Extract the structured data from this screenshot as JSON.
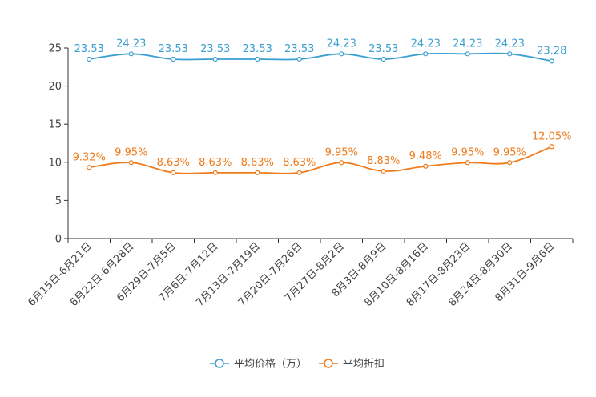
{
  "chart_data": {
    "type": "line",
    "categories": [
      "6月15日-6月21日",
      "6月22日-6月28日",
      "6月29日-7月5日",
      "7月6日-7月12日",
      "7月13日-7月19日",
      "7月20日-7月26日",
      "7月27日-8月2日",
      "8月3日-8月9日",
      "8月10日-8月16日",
      "8月17日-8月23日",
      "8月24日-8月30日",
      "8月31日-9月6日"
    ],
    "ylim": [
      0,
      25
    ],
    "yticks": [
      0,
      5,
      10,
      15,
      20,
      25
    ],
    "series": [
      {
        "name": "平均价格（万）",
        "color": "#3a9fd0",
        "values": [
          23.53,
          24.23,
          23.53,
          23.53,
          23.53,
          23.53,
          24.23,
          23.53,
          24.23,
          24.23,
          24.23,
          23.28
        ],
        "labels": [
          "23.53",
          "24.23",
          "23.53",
          "23.53",
          "23.53",
          "23.53",
          "24.23",
          "23.53",
          "24.23",
          "24.23",
          "24.23",
          "23.28"
        ]
      },
      {
        "name": "平均折扣",
        "color": "#f07a1a",
        "values": [
          9.32,
          9.95,
          8.63,
          8.63,
          8.63,
          8.63,
          9.95,
          8.83,
          9.48,
          9.95,
          9.95,
          12.05
        ],
        "labels": [
          "9.32%",
          "9.95%",
          "8.63%",
          "8.63%",
          "8.63%",
          "8.63%",
          "9.95%",
          "8.83%",
          "9.48%",
          "9.95%",
          "9.95%",
          "12.05%"
        ]
      }
    ],
    "legend_position": "bottom-center"
  }
}
